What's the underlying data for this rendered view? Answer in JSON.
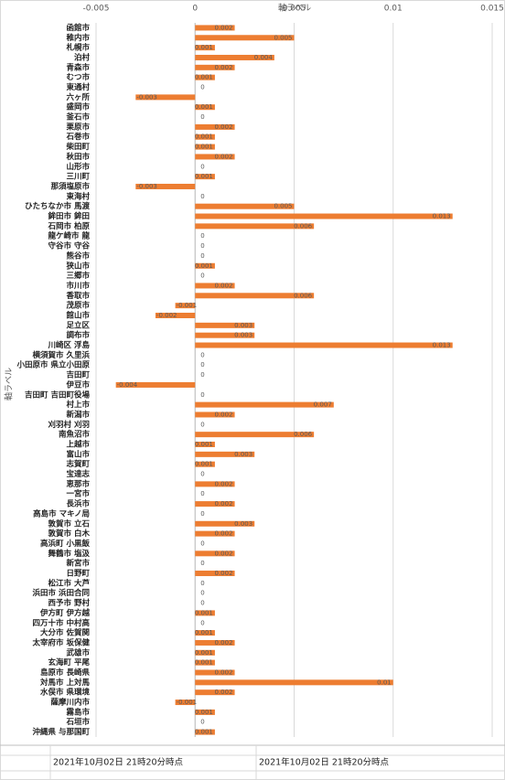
{
  "chart_data": {
    "type": "bar",
    "orientation": "horizontal",
    "x_label": "軸ラベル",
    "y_label": "軸ラベル",
    "categories": [
      "函館市",
      "稚内市",
      "札幌市",
      "泊村",
      "青森市",
      "むつ市",
      "東通村",
      "六ヶ所",
      "盛岡市",
      "釜石市",
      "栗原市",
      "石巻市",
      "柴田町",
      "秋田市",
      "山形市",
      "三川町",
      "那須塩原市",
      "東海村",
      "ひたちなか市 馬渡",
      "鉾田市 鉾田",
      "石岡市 柏原",
      "龍ケ崎市 龍",
      "守谷市 守谷",
      "熊谷市",
      "狭山市",
      "三郷市",
      "市川市",
      "香取市",
      "茂原市",
      "館山市",
      "足立区",
      "調布市",
      "川崎区 浮島",
      "横須賀市 久里浜",
      "小田原市 県立小田原",
      "吉田町",
      "伊豆市",
      "吉田町 吉田町役場",
      "村上市",
      "新潟市",
      "刈羽村 刈羽",
      "南魚沼市",
      "上越市",
      "富山市",
      "志賀町",
      "宝達志",
      "恵那市",
      "一宮市",
      "長浜市",
      "高島市 マキノ局",
      "敦賀市 立石",
      "敦賀市 白木",
      "高浜町 小黒飯",
      "舞鶴市 塩汲",
      "新宮市",
      "日野町",
      "松江市 大芦",
      "浜田市 浜田合同",
      "西予市 野村",
      "伊方町 伊方越",
      "四万十市 中村高",
      "大分市 佐賀関",
      "太宰府市 坂保健",
      "武雄市",
      "玄海町 平尾",
      "島原市 長崎県",
      "対馬市 上対馬",
      "水俣市 県環境",
      "薩摩川内市",
      "霧島市",
      "石垣市",
      "沖縄県 与那国町"
    ],
    "values": [
      0.002,
      0.005,
      0.001,
      0.004,
      0.002,
      0.001,
      0,
      -0.003,
      0.001,
      0,
      0.002,
      0.001,
      0.001,
      0.002,
      0,
      0.001,
      -0.003,
      0,
      0.005,
      0.013,
      0.006,
      0,
      0,
      0,
      0.001,
      0,
      0.002,
      0.006,
      -0.001,
      -0.002,
      0.003,
      0.003,
      0.013,
      0,
      0,
      0,
      -0.004,
      0,
      0.007,
      0.002,
      0,
      0.006,
      0.001,
      0.003,
      0.001,
      0,
      0.002,
      0,
      0.002,
      0,
      0.003,
      0.002,
      0,
      0.002,
      0,
      0.002,
      0,
      0,
      0,
      0.001,
      0,
      0.001,
      0.002,
      0.001,
      0.001,
      0.002,
      0.01,
      0.002,
      -0.001,
      0.001,
      0,
      0.001
    ],
    "color": "#ed7d31",
    "xlim": [
      -0.005,
      0.015
    ],
    "xticks": [
      -0.005,
      0,
      0.005,
      0.01,
      0.015
    ],
    "grid": true
  },
  "footer": [
    "2021年10月02日 21時20分時点",
    "2021年10月02日 21時20分時点"
  ]
}
